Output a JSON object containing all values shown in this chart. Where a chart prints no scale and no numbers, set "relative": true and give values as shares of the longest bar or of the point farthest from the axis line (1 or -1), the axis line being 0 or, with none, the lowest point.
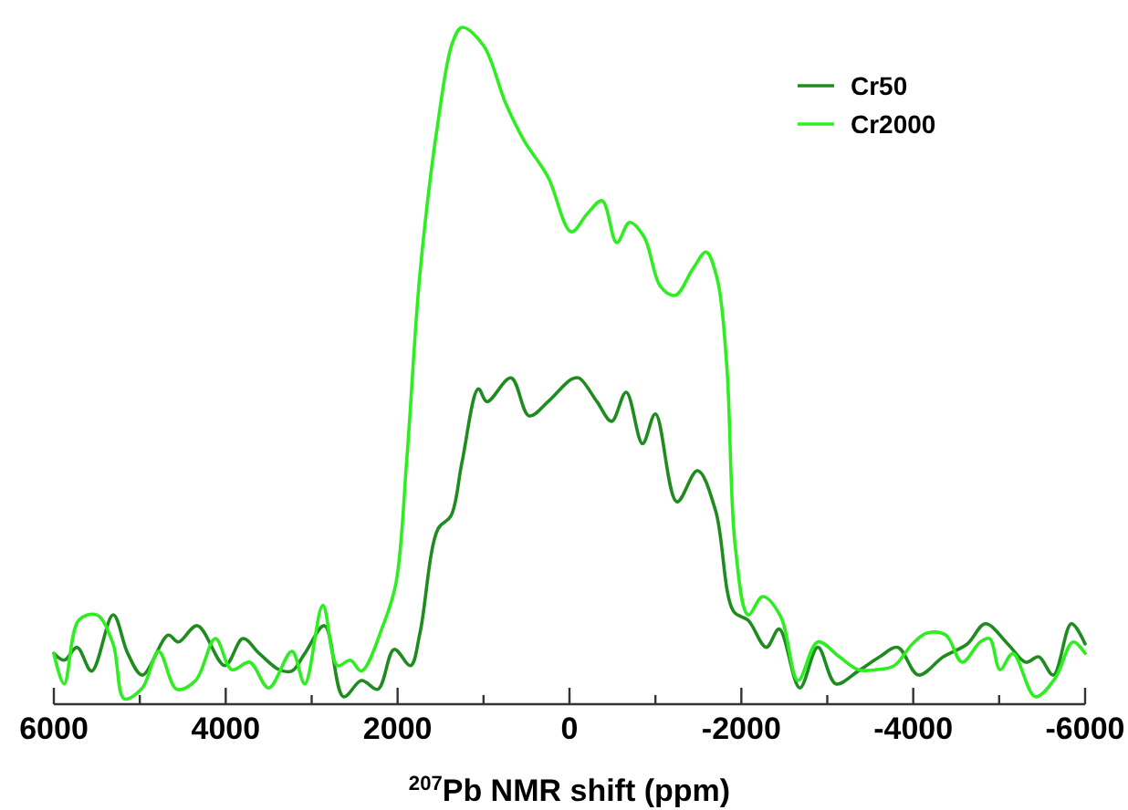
{
  "chart_data": {
    "type": "line",
    "relative": true,
    "xlabel": "$^{207}$Pb NMR shift (ppm)",
    "xlim": [
      6000,
      -6000
    ],
    "xticks": [
      6000,
      {
        "value": 5000,
        "label": null
      },
      4000,
      {
        "value": 3000,
        "label": null
      },
      2000,
      {
        "value": 1000,
        "label": null
      },
      0,
      {
        "value": -1000,
        "label": null
      },
      -2000,
      {
        "value": -3000,
        "label": null
      },
      -4000,
      {
        "value": -5000,
        "label": null
      },
      -6000
    ],
    "legend": "top right",
    "grid": false,
    "line_style": "solid",
    "series": [
      {
        "name": "Cr50",
        "color": "#1e8c1e",
        "x": [
          6000,
          5880,
          5730,
          5560,
          5310,
          5140,
          4970,
          4670,
          4550,
          4330,
          4010,
          3800,
          3610,
          3380,
          3230,
          3080,
          2850,
          2630,
          2420,
          2230,
          2040,
          1850,
          1740,
          1530,
          1380,
          1250,
          1060,
          960,
          680,
          470,
          250,
          -20,
          -110,
          -320,
          -490,
          -660,
          -850,
          -1000,
          -1250,
          -1490,
          -1700,
          -1910,
          -2080,
          -2290,
          -2440,
          -2680,
          -2890,
          -3100,
          -3360,
          -3610,
          -3820,
          -4060,
          -4350,
          -4630,
          -4840,
          -5100,
          -5310,
          -5460,
          -5630,
          -5840,
          -6000
        ],
        "values": [
          0.075,
          0.065,
          0.084,
          0.049,
          0.132,
          0.075,
          0.043,
          0.102,
          0.092,
          0.116,
          0.057,
          0.097,
          0.075,
          0.051,
          0.049,
          0.075,
          0.116,
          0.011,
          0.035,
          0.022,
          0.081,
          0.057,
          0.105,
          0.259,
          0.278,
          0.358,
          0.466,
          0.447,
          0.482,
          0.426,
          0.447,
          0.48,
          0.482,
          0.447,
          0.418,
          0.461,
          0.385,
          0.429,
          0.299,
          0.345,
          0.286,
          0.137,
          0.124,
          0.084,
          0.111,
          0.024,
          0.084,
          0.03,
          0.049,
          0.07,
          0.084,
          0.043,
          0.07,
          0.089,
          0.119,
          0.089,
          0.062,
          0.07,
          0.043,
          0.119,
          0.089
        ]
      },
      {
        "name": "Cr2000",
        "color": "#2eee22",
        "x": [
          6000,
          5880,
          5710,
          5500,
          5310,
          5180,
          4970,
          4780,
          4570,
          4350,
          4120,
          3930,
          3720,
          3500,
          3230,
          3080,
          2870,
          2700,
          2550,
          2420,
          2170,
          2020,
          1890,
          1740,
          1530,
          1360,
          1250,
          1000,
          740,
          530,
          250,
          -20,
          -210,
          -380,
          -550,
          -700,
          -870,
          -1060,
          -1230,
          -1440,
          -1590,
          -1720,
          -1830,
          -1930,
          -2080,
          -2250,
          -2460,
          -2660,
          -2890,
          -3140,
          -3360,
          -3570,
          -3780,
          -3990,
          -4160,
          -4380,
          -4570,
          -4780,
          -4890,
          -5010,
          -5160,
          -5420,
          -5650,
          -5860,
          -6000
        ],
        "values": [
          0.075,
          0.03,
          0.124,
          0.132,
          0.089,
          0.008,
          0.024,
          0.078,
          0.022,
          0.035,
          0.097,
          0.051,
          0.062,
          0.024,
          0.078,
          0.03,
          0.146,
          0.057,
          0.065,
          0.049,
          0.116,
          0.178,
          0.367,
          0.636,
          0.86,
          0.978,
          1,
          0.973,
          0.887,
          0.833,
          0.779,
          0.698,
          0.725,
          0.744,
          0.682,
          0.712,
          0.69,
          0.617,
          0.604,
          0.644,
          0.668,
          0.628,
          0.501,
          0.232,
          0.132,
          0.159,
          0.129,
          0.035,
          0.092,
          0.07,
          0.051,
          0.051,
          0.057,
          0.089,
          0.105,
          0.102,
          0.062,
          0.092,
          0.097,
          0.051,
          0.075,
          0.011,
          0.038,
          0.092,
          0.075
        ]
      }
    ]
  }
}
